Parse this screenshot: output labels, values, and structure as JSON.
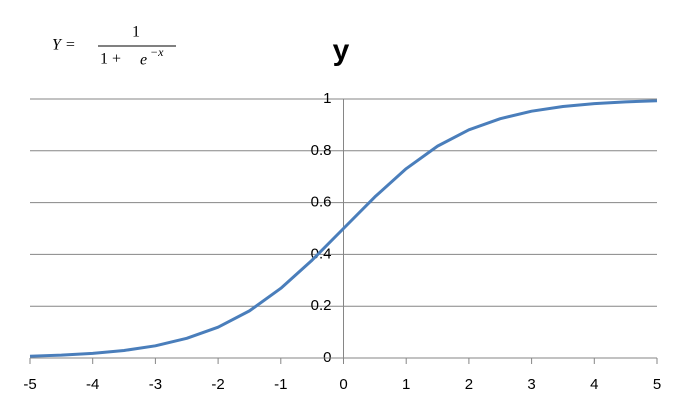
{
  "chart_data": {
    "type": "line",
    "title": "y",
    "formula": {
      "lhs": "Y =",
      "numerator": "1",
      "denominator": "1 +",
      "base": "e",
      "exponent": "−x"
    },
    "x": [
      -5,
      -4.5,
      -4,
      -3.5,
      -3,
      -2.5,
      -2,
      -1.5,
      -1,
      -0.5,
      0,
      0.5,
      1,
      1.5,
      2,
      2.5,
      3,
      3.5,
      4,
      4.5,
      5
    ],
    "values": [
      0.007,
      0.011,
      0.018,
      0.029,
      0.047,
      0.076,
      0.119,
      0.182,
      0.269,
      0.378,
      0.5,
      0.622,
      0.731,
      0.818,
      0.881,
      0.924,
      0.953,
      0.971,
      0.982,
      0.989,
      0.993
    ],
    "color": "#4a7ebb",
    "xlim": [
      -5,
      5
    ],
    "xticks": [
      -5,
      -4,
      -3,
      -2,
      -1,
      0,
      1,
      2,
      3,
      4,
      5
    ],
    "ylim": [
      0,
      1
    ],
    "yticks": [
      0,
      0.2,
      0.4,
      0.6,
      0.8,
      1
    ],
    "grid": true
  }
}
